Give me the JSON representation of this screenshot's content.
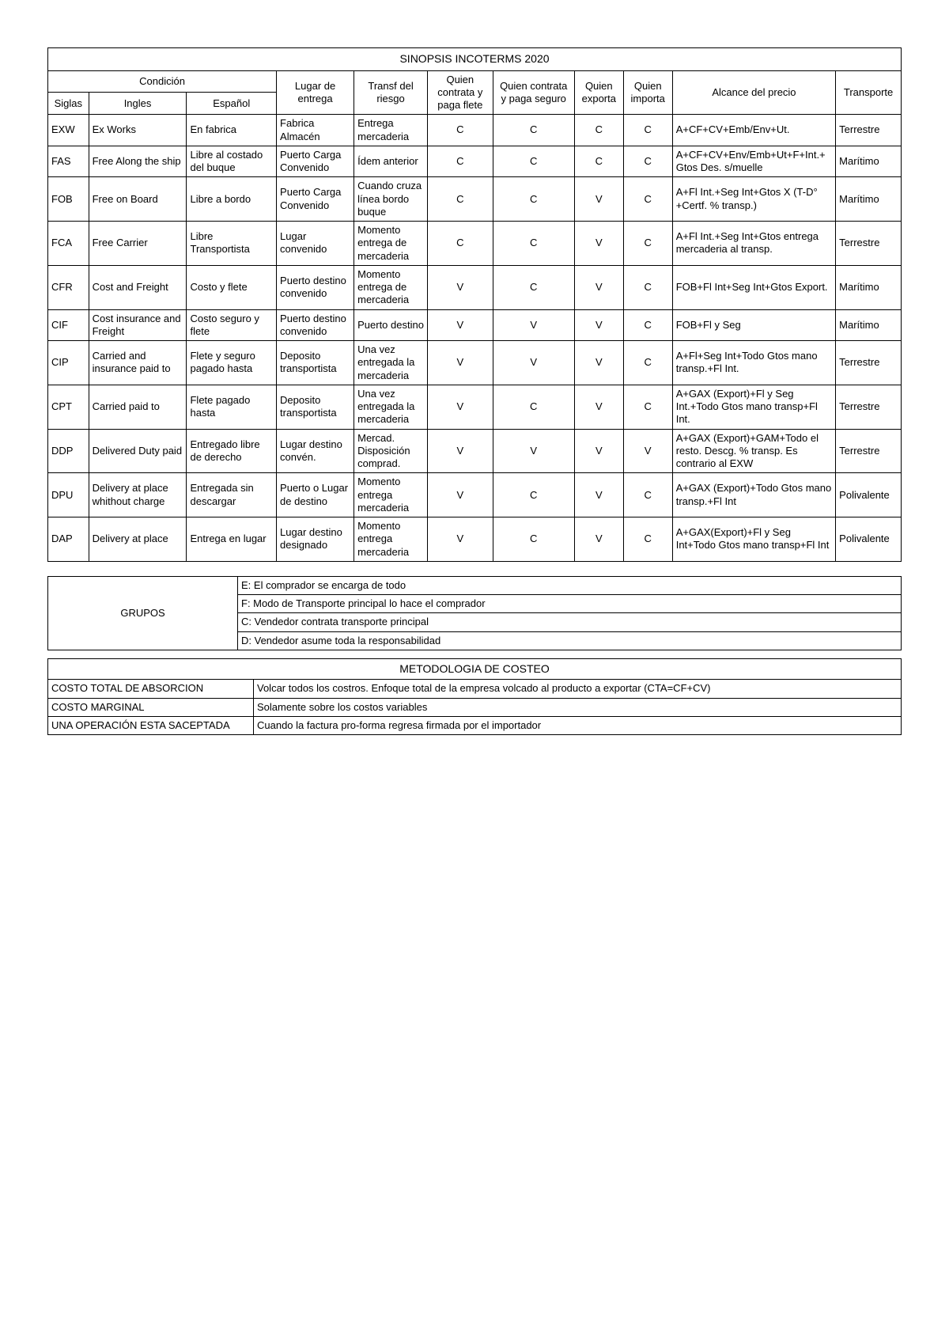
{
  "mainTitle": "SINOPSIS INCOTERMS 2020",
  "headers": {
    "condicion": "Condición",
    "siglas": "Siglas",
    "ingles": "Ingles",
    "espanol": "Español",
    "lugar": "Lugar de entrega",
    "transf": "Transf del riesgo",
    "flete": "Quien contrata y paga flete",
    "seguro": "Quien contrata y paga seguro",
    "exporta": "Quien exporta",
    "importa": "Quien importa",
    "alcance": "Alcance del precio",
    "transporte": "Transporte"
  },
  "rows": [
    {
      "siglas": "EXW",
      "ingles": "Ex Works",
      "espanol": "En fabrica",
      "lugar": "Fabrica Almacén",
      "transf": "Entrega mercaderia",
      "flete": "C",
      "seguro": "C",
      "exporta": "C",
      "importa": "C",
      "alcance": "A+CF+CV+Emb/Env+Ut.",
      "transporte": "Terrestre"
    },
    {
      "siglas": "FAS",
      "ingles": "Free Along the ship",
      "espanol": "Libre al costado del buque",
      "lugar": "Puerto Carga Convenido",
      "transf": "Ídem anterior",
      "flete": "C",
      "seguro": "C",
      "exporta": "C",
      "importa": "C",
      "alcance": "A+CF+CV+Env/Emb+Ut+F+Int.+Gtos Des. s/muelle",
      "transporte": "Marítimo"
    },
    {
      "siglas": "FOB",
      "ingles": "Free on Board",
      "espanol": "Libre a bordo",
      "lugar": "Puerto Carga Convenido",
      "transf": "Cuando cruza línea bordo buque",
      "flete": "C",
      "seguro": "C",
      "exporta": "V",
      "importa": "C",
      "alcance": "A+Fl Int.+Seg Int+Gtos X (T-D°+Certf. % transp.)",
      "transporte": "Marítimo"
    },
    {
      "siglas": "FCA",
      "ingles": "Free Carrier",
      "espanol": "Libre Transportista",
      "lugar": "Lugar convenido",
      "transf": "Momento entrega de mercaderia",
      "flete": "C",
      "seguro": "C",
      "exporta": "V",
      "importa": "C",
      "alcance": "A+Fl Int.+Seg Int+Gtos entrega mercaderia al transp.",
      "transporte": "Terrestre"
    },
    {
      "siglas": "CFR",
      "ingles": "Cost and Freight",
      "espanol": "Costo y flete",
      "lugar": "Puerto destino convenido",
      "transf": "Momento entrega de mercaderia",
      "flete": "V",
      "seguro": "C",
      "exporta": "V",
      "importa": "C",
      "alcance": "FOB+Fl Int+Seg Int+Gtos Export.",
      "transporte": "Marítimo"
    },
    {
      "siglas": "CIF",
      "ingles": "Cost insurance and Freight",
      "espanol": "Costo seguro y flete",
      "lugar": "Puerto destino convenido",
      "transf": "Puerto destino",
      "flete": "V",
      "seguro": "V",
      "exporta": "V",
      "importa": "C",
      "alcance": "FOB+Fl y Seg",
      "transporte": "Marítimo"
    },
    {
      "siglas": "CIP",
      "ingles": "Carried and insurance paid to",
      "espanol": "Flete y seguro pagado hasta",
      "lugar": "Deposito transportista",
      "transf": "Una vez entregada la mercaderia",
      "flete": "V",
      "seguro": "V",
      "exporta": "V",
      "importa": "C",
      "alcance": "A+Fl+Seg Int+Todo Gtos mano transp.+Fl Int.",
      "transporte": "Terrestre"
    },
    {
      "siglas": "CPT",
      "ingles": "Carried paid to",
      "espanol": "Flete pagado hasta",
      "lugar": "Deposito transportista",
      "transf": "Una vez entregada la mercaderia",
      "flete": "V",
      "seguro": "C",
      "exporta": "V",
      "importa": "C",
      "alcance": "A+GAX (Export)+Fl y Seg Int.+Todo Gtos mano transp+Fl Int.",
      "transporte": "Terrestre"
    },
    {
      "siglas": "DDP",
      "ingles": "Delivered Duty paid",
      "espanol": "Entregado libre de derecho",
      "lugar": "Lugar destino convén.",
      "transf": "Mercad. Disposición comprad.",
      "flete": "V",
      "seguro": "V",
      "exporta": "V",
      "importa": "V",
      "alcance": "A+GAX (Export)+GAM+Todo el resto. Descg. % transp. Es contrario al EXW",
      "transporte": "Terrestre"
    },
    {
      "siglas": "DPU",
      "ingles": "Delivery at place whithout charge",
      "espanol": "Entregada sin descargar",
      "lugar": "Puerto o Lugar de destino",
      "transf": "Momento entrega mercaderia",
      "flete": "V",
      "seguro": "C",
      "exporta": "V",
      "importa": "C",
      "alcance": "A+GAX (Export)+Todo Gtos mano transp.+Fl Int",
      "transporte": "Polivalente"
    },
    {
      "siglas": "DAP",
      "ingles": "Delivery at place",
      "espanol": "Entrega en lugar",
      "lugar": "Lugar destino designado",
      "transf": "Momento entrega mercaderia",
      "flete": "V",
      "seguro": "C",
      "exporta": "V",
      "importa": "C",
      "alcance": "A+GAX(Export)+Fl y Seg Int+Todo Gtos mano transp+Fl Int",
      "transporte": "Polivalente"
    }
  ],
  "groups": {
    "title": "GRUPOS",
    "items": [
      "E: El comprador se encarga de todo",
      "F: Modo de Transporte principal lo hace el comprador",
      "C: Vendedor contrata transporte principal",
      "D: Vendedor asume toda la responsabilidad"
    ]
  },
  "method": {
    "title": "METODOLOGIA DE COSTEO",
    "rows": [
      {
        "label": "COSTO TOTAL DE ABSORCION",
        "desc": "Volcar todos los costros. Enfoque total de la empresa volcado al producto a exportar (CTA=CF+CV)"
      },
      {
        "label": "COSTO MARGINAL",
        "desc": "Solamente sobre los costos variables"
      },
      {
        "label": "UNA OPERACIÓN ESTA SACEPTADA",
        "desc": "Cuando la factura pro-forma regresa firmada por el importador"
      }
    ]
  }
}
